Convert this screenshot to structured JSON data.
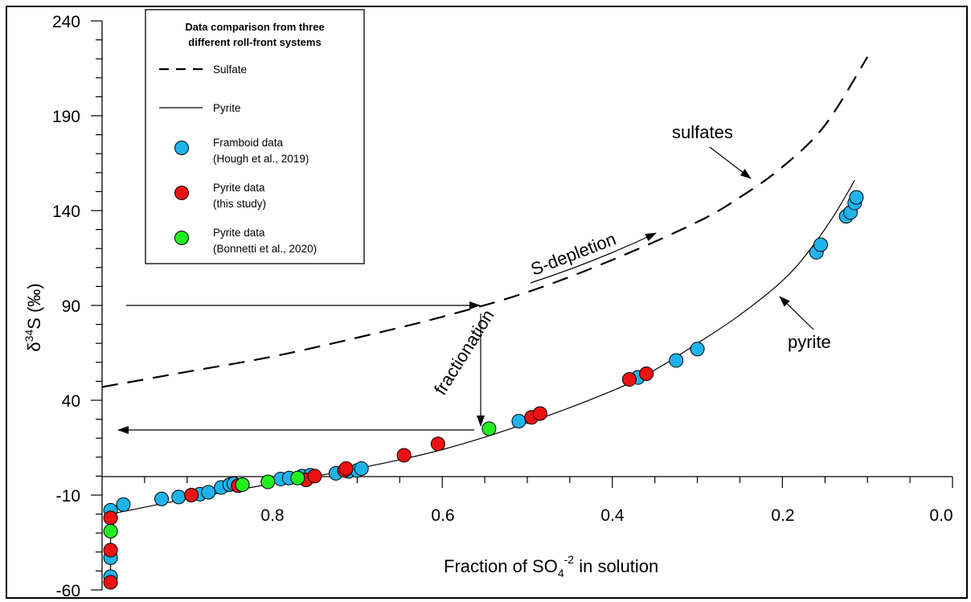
{
  "chart_data": {
    "type": "scatter",
    "xlabel": {
      "pre": "Fraction of SO",
      "sub": "4",
      "sup": "-2",
      "post": " in solution"
    },
    "ylabel": {
      "delta": "δ",
      "sup": "34",
      "post": "S (‰)"
    },
    "xlim": [
      1.0,
      0.0
    ],
    "ylim": [
      -60,
      240
    ],
    "x_reversed": true,
    "x_tick_labels": [
      "0.8",
      "0.6",
      "0.4",
      "0.2",
      "0.0"
    ],
    "y_tick_labels": [
      "-60",
      "-10",
      "40",
      "90",
      "140",
      "190",
      "240"
    ],
    "legend": {
      "title_lines": [
        "Data comparison from three",
        "different roll-front systems"
      ],
      "position": "top-left",
      "entries": [
        {
          "kind": "dashed-line",
          "lines": [
            "Sulfate"
          ]
        },
        {
          "kind": "solid-line",
          "lines": [
            "Pyrite"
          ]
        },
        {
          "kind": "marker",
          "color": "#1EB4EB",
          "lines": [
            "Framboid data",
            "(Hough et al., 2019)"
          ]
        },
        {
          "kind": "marker",
          "color": "#EE1111",
          "lines": [
            "Pyrite data",
            "(this study)"
          ]
        },
        {
          "kind": "marker",
          "color": "#22EE22",
          "lines": [
            "Pyrite data",
            "(Bonnetti et al., 2020)"
          ]
        }
      ]
    },
    "annotations": {
      "sulfates": "sulfates",
      "pyrite": "pyrite",
      "s_depletion": "S-depletion",
      "fractionation": "fractionation"
    },
    "curves": {
      "sulfate": {
        "name": "Sulfate",
        "style": "dashed",
        "x": [
          1.0,
          0.9,
          0.8,
          0.7,
          0.6,
          0.5,
          0.4,
          0.3,
          0.25,
          0.2,
          0.15,
          0.1
        ],
        "y": [
          47,
          55,
          63,
          73,
          84,
          97,
          114,
          134,
          147,
          163,
          185,
          221
        ]
      },
      "pyrite": {
        "name": "Pyrite",
        "style": "solid",
        "x": [
          0.99,
          0.9,
          0.8,
          0.7,
          0.6,
          0.5,
          0.4,
          0.35,
          0.3,
          0.25,
          0.2,
          0.17,
          0.14,
          0.115
        ],
        "y": [
          -20,
          -12,
          -4,
          4,
          14,
          28,
          45,
          56,
          70,
          85,
          103,
          118,
          137,
          156
        ]
      }
    },
    "series": [
      {
        "color": "#1EB4EB",
        "x": [
          0.99,
          0.99,
          0.99,
          0.975,
          0.93,
          0.91,
          0.885,
          0.875,
          0.86,
          0.85,
          0.845,
          0.79,
          0.78,
          0.765,
          0.755,
          0.725,
          0.71,
          0.7,
          0.695,
          0.51,
          0.37,
          0.325,
          0.3,
          0.16,
          0.155,
          0.125,
          0.12,
          0.115,
          0.113
        ],
        "y": [
          -18,
          -43,
          -53,
          -15,
          -12,
          -11,
          -9.5,
          -8.5,
          -6,
          -4.5,
          -4,
          -1.5,
          -1,
          0,
          0.5,
          1.5,
          2.5,
          3,
          4,
          29,
          52,
          61,
          67,
          118,
          122,
          137,
          139,
          144,
          147
        ]
      },
      {
        "color": "#EE1111",
        "x": [
          0.99,
          0.99,
          0.99,
          0.895,
          0.84,
          0.76,
          0.75,
          0.715,
          0.713,
          0.645,
          0.605,
          0.495,
          0.485,
          0.38,
          0.36
        ],
        "y": [
          -22,
          -39,
          -56,
          -10,
          -5,
          -2,
          0,
          3,
          4,
          11,
          17,
          31,
          33,
          51,
          54
        ]
      },
      {
        "color": "#22EE22",
        "x": [
          0.99,
          0.835,
          0.805,
          0.77,
          0.545
        ],
        "y": [
          -29,
          -4.5,
          -3,
          -1,
          25
        ]
      }
    ]
  }
}
